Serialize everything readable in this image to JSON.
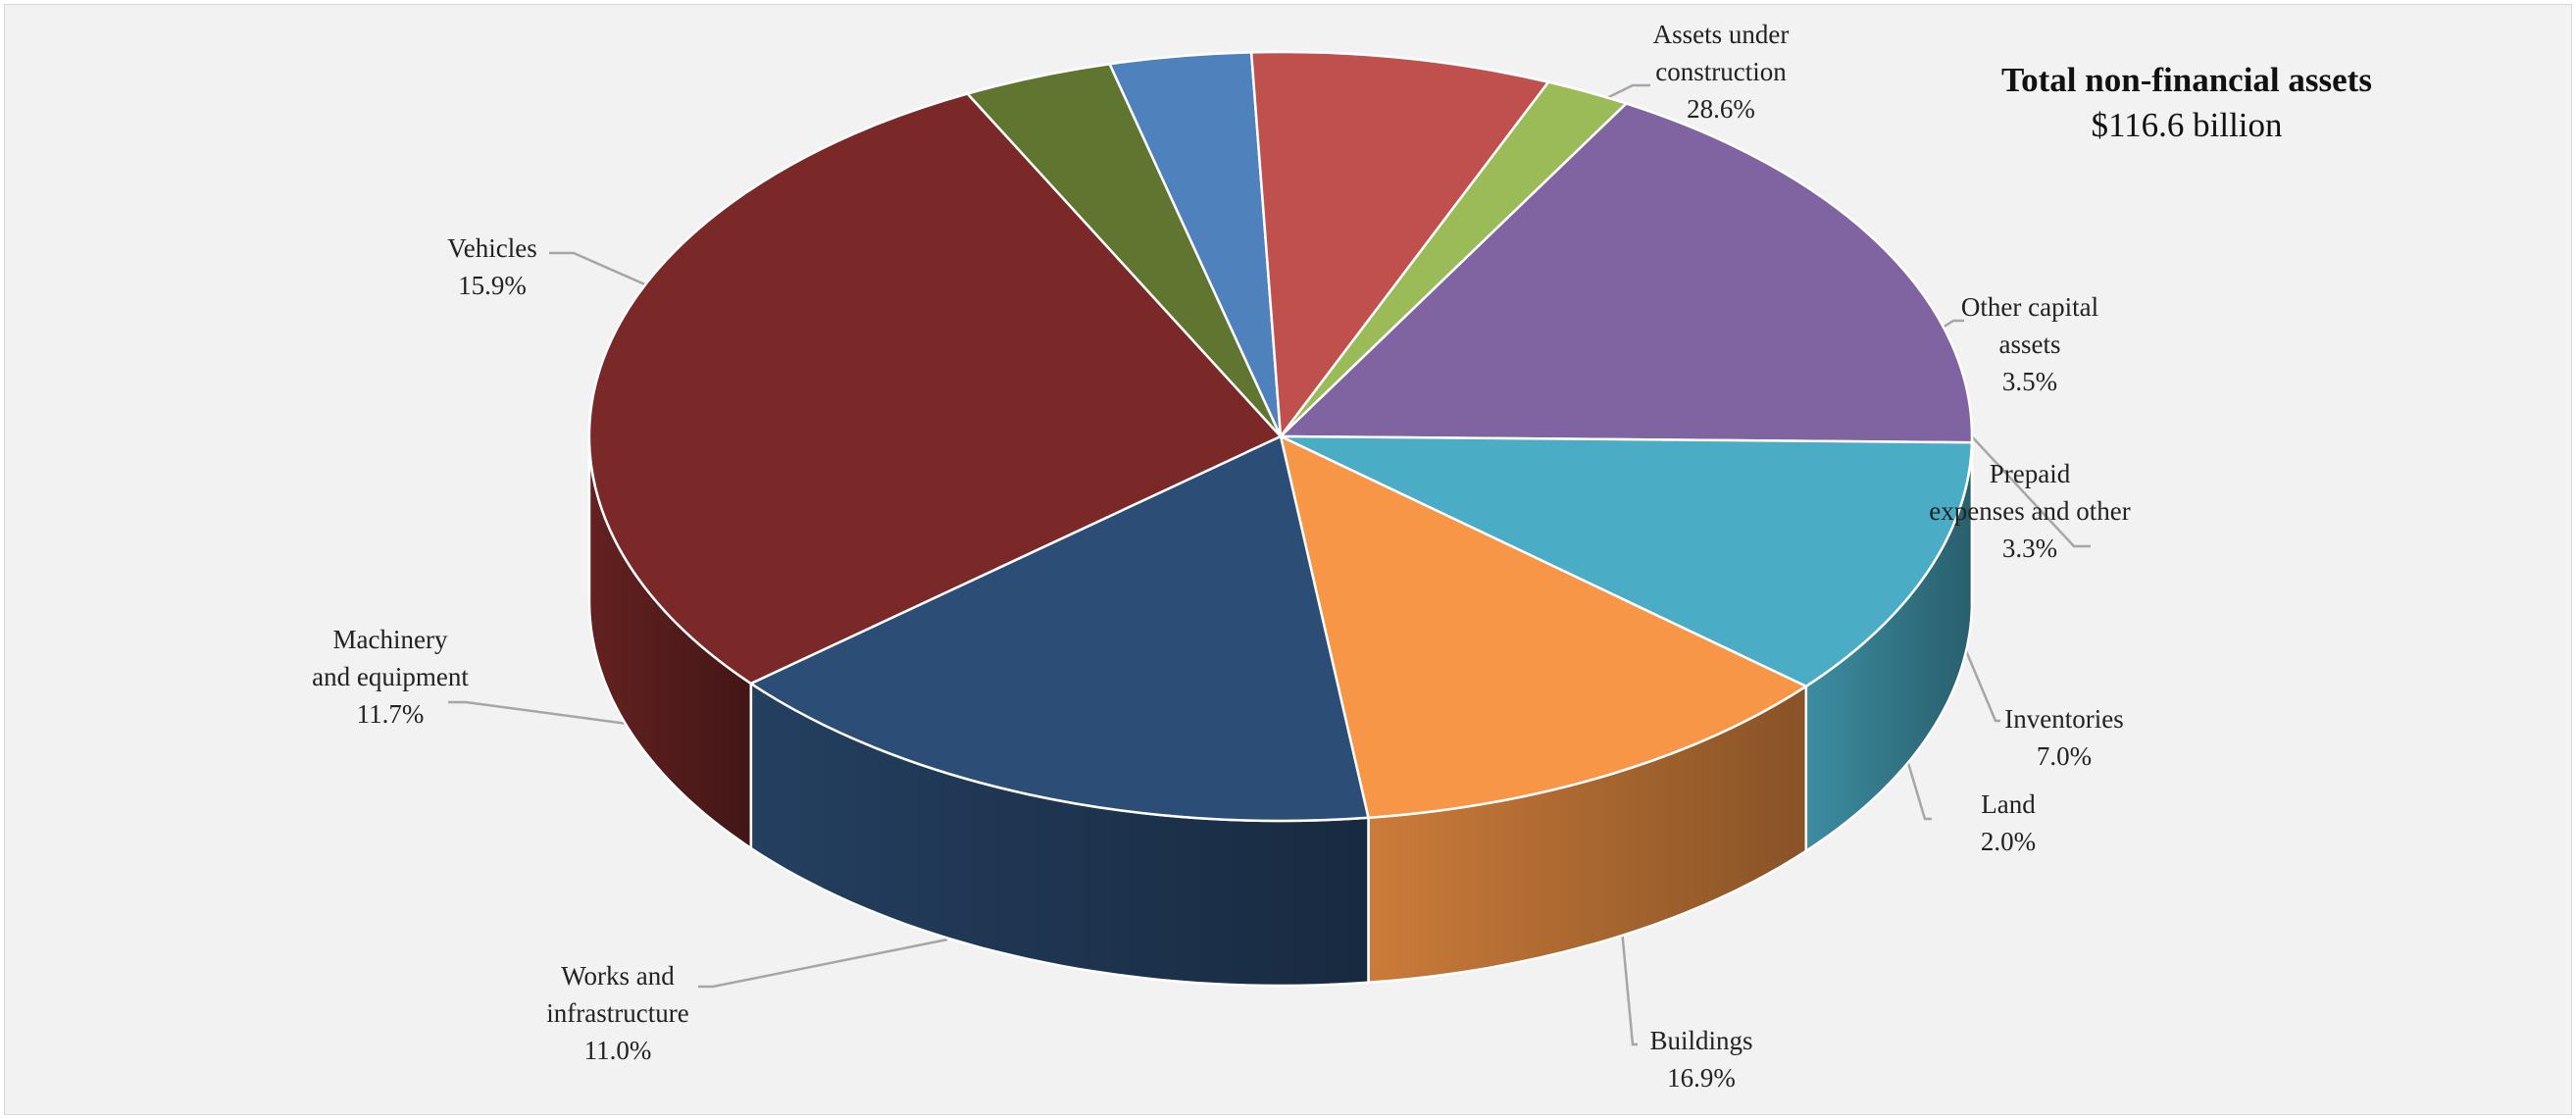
{
  "chart_data": {
    "type": "pie",
    "title": "Total non-financial assets",
    "subtitle": "$116.6 billion",
    "slices": [
      {
        "key": "assets-under-construction",
        "label": [
          "Assets under",
          "construction"
        ],
        "value_label": "28.6%",
        "value": 28.6,
        "color": "#7a2828"
      },
      {
        "key": "other-capital-assets",
        "label": [
          "Other capital",
          "assets"
        ],
        "value_label": "3.5%",
        "value": 3.5,
        "color": "#5f7530"
      },
      {
        "key": "prepaid-expenses",
        "label": [
          "Prepaid",
          "expenses and other"
        ],
        "value_label": "3.3%",
        "value": 3.3,
        "color": "#4f81bd"
      },
      {
        "key": "inventories",
        "label": [
          "Inventories"
        ],
        "value_label": "7.0%",
        "value": 7.0,
        "color": "#c0504d"
      },
      {
        "key": "land",
        "label": [
          "Land"
        ],
        "value_label": "2.0%",
        "value": 2.0,
        "color": "#9bbb59"
      },
      {
        "key": "buildings",
        "label": [
          "Buildings"
        ],
        "value_label": "16.9%",
        "value": 16.9,
        "color": "#8064a2"
      },
      {
        "key": "works-and-infrastructure",
        "label": [
          "Works and",
          "infrastructure"
        ],
        "value_label": "11.0%",
        "value": 11.0,
        "color": "#4bacc6"
      },
      {
        "key": "machinery-and-equipment",
        "label": [
          "Machinery",
          "and equipment"
        ],
        "value_label": "11.7%",
        "value": 11.7,
        "color": "#f79646"
      },
      {
        "key": "vehicles",
        "label": [
          "Vehicles"
        ],
        "value_label": "15.9%",
        "value": 15.9,
        "color": "#2c4d75"
      }
    ]
  }
}
